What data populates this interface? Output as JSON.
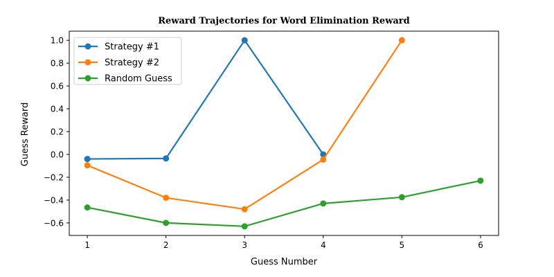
{
  "chart_data": {
    "type": "line",
    "title": "Reward Trajectories for Word Elimination Reward",
    "xlabel": "Guess Number",
    "ylabel": "Guess Reward",
    "xlim": [
      0.77,
      6.23
    ],
    "ylim": [
      -0.71,
      1.08
    ],
    "xticks": [
      1,
      2,
      3,
      4,
      5,
      6
    ],
    "yticks": [
      -0.6,
      -0.4,
      -0.2,
      0.0,
      0.2,
      0.4,
      0.6,
      0.8,
      1.0
    ],
    "xtick_labels": [
      "1",
      "2",
      "3",
      "4",
      "5",
      "6"
    ],
    "ytick_labels": [
      "−0.6",
      "−0.4",
      "−0.2",
      "0.0",
      "0.2",
      "0.4",
      "0.6",
      "0.8",
      "1.0"
    ],
    "grid": false,
    "legend_position": "top-left",
    "series": [
      {
        "name": "Strategy #1",
        "color": "#1f77b4",
        "x": [
          1,
          2,
          3,
          4
        ],
        "y": [
          -0.04,
          -0.035,
          1.0,
          0.0
        ]
      },
      {
        "name": "Strategy #2",
        "color": "#ff7f0e",
        "x": [
          1,
          2,
          3,
          4,
          5
        ],
        "y": [
          -0.095,
          -0.38,
          -0.48,
          -0.045,
          1.0
        ]
      },
      {
        "name": "Random Guess",
        "color": "#2ca02c",
        "x": [
          1,
          2,
          3,
          4,
          5,
          6
        ],
        "y": [
          -0.465,
          -0.6,
          -0.63,
          -0.43,
          -0.375,
          -0.23
        ]
      }
    ]
  }
}
